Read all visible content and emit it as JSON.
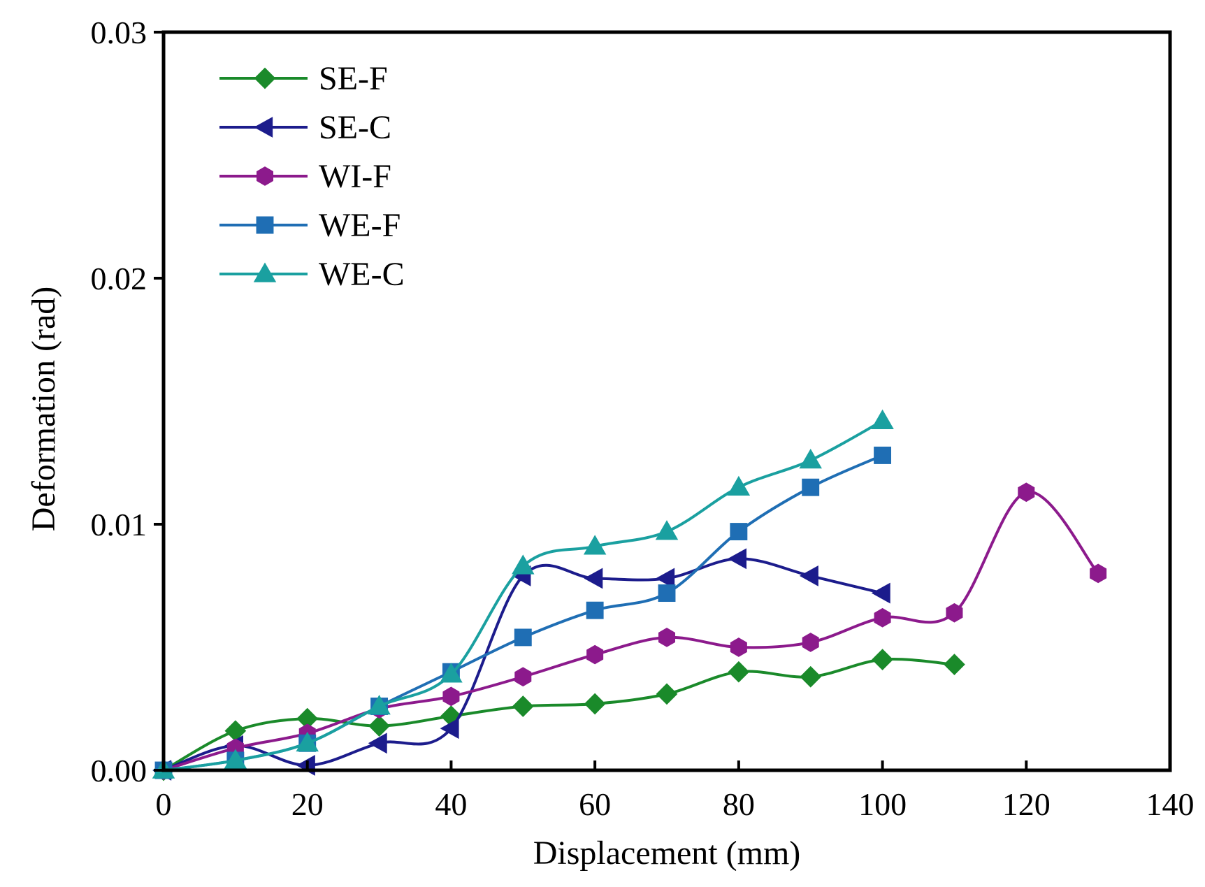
{
  "chart_data": {
    "type": "line",
    "title": "",
    "xlabel": "Displacement (mm)",
    "ylabel": "Deformation (rad)",
    "xlim": [
      0,
      140
    ],
    "ylim": [
      0,
      0.03
    ],
    "xticks": [
      0,
      20,
      40,
      60,
      80,
      100,
      120,
      140
    ],
    "xtick_labels": [
      "0",
      "20",
      "40",
      "60",
      "80",
      "100",
      "120",
      "140"
    ],
    "yticks": [
      0,
      0.01,
      0.02,
      0.03
    ],
    "ytick_labels": [
      "0.00",
      "0.01",
      "0.02",
      "0.03"
    ],
    "grid": false,
    "legend_position": "top-left",
    "series": [
      {
        "name": "SE-F",
        "color": "#1a8a2a",
        "marker": "diamond",
        "x": [
          0,
          10,
          20,
          30,
          40,
          50,
          60,
          70,
          80,
          90,
          100,
          110
        ],
        "y": [
          0.0,
          0.0016,
          0.0021,
          0.0018,
          0.0022,
          0.0026,
          0.0027,
          0.0031,
          0.004,
          0.0038,
          0.0045,
          0.0043
        ]
      },
      {
        "name": "SE-C",
        "color": "#1c1c8c",
        "marker": "triangle-left",
        "x": [
          0,
          10,
          20,
          30,
          40,
          50,
          60,
          70,
          80,
          90,
          100
        ],
        "y": [
          0.0,
          0.001,
          0.0002,
          0.0011,
          0.0017,
          0.0079,
          0.0078,
          0.0078,
          0.0086,
          0.0079,
          0.0072
        ]
      },
      {
        "name": "WI-F",
        "color": "#8c1a8c",
        "marker": "hexagon",
        "x": [
          0,
          10,
          20,
          30,
          40,
          50,
          60,
          70,
          80,
          90,
          100,
          110,
          120,
          130
        ],
        "y": [
          0.0,
          0.0009,
          0.0015,
          0.0025,
          0.003,
          0.0038,
          0.0047,
          0.0054,
          0.005,
          0.0052,
          0.0062,
          0.0064,
          0.0113,
          0.008
        ]
      },
      {
        "name": "WE-F",
        "color": "#1f6eb4",
        "marker": "square",
        "x": [
          0,
          10,
          20,
          30,
          40,
          50,
          60,
          70,
          80,
          90,
          100
        ],
        "y": [
          0.0,
          0.0004,
          0.0011,
          0.0026,
          0.004,
          0.0054,
          0.0065,
          0.0072,
          0.0097,
          0.0115,
          0.0128
        ]
      },
      {
        "name": "WE-C",
        "color": "#1aa0a0",
        "marker": "triangle-up",
        "x": [
          0,
          10,
          20,
          30,
          40,
          50,
          60,
          70,
          80,
          90,
          100
        ],
        "y": [
          0.0,
          0.0004,
          0.0011,
          0.0026,
          0.0039,
          0.0083,
          0.0091,
          0.0097,
          0.0115,
          0.0126,
          0.0142
        ]
      }
    ]
  }
}
